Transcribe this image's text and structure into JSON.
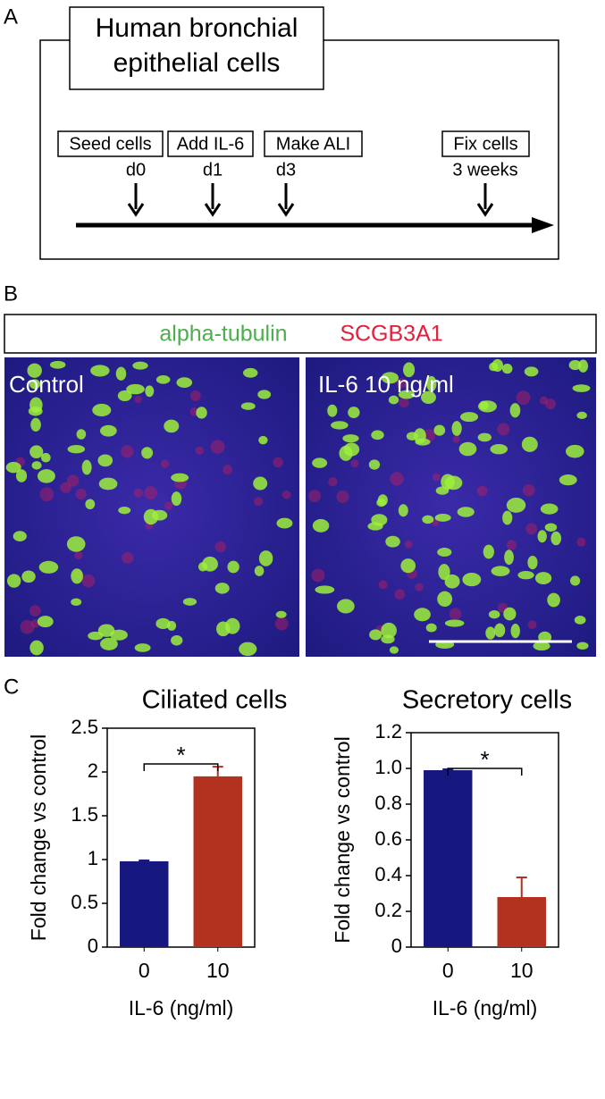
{
  "panel_a": {
    "label": "A",
    "title": [
      "Human bronchial",
      "epithelial cells"
    ],
    "steps": [
      {
        "label": "Seed cells",
        "time": "d0"
      },
      {
        "label": "Add IL-6",
        "time": "d1"
      },
      {
        "label": "Make ALI",
        "time": "d3"
      },
      {
        "label": "Fix cells",
        "time": "3 weeks"
      }
    ]
  },
  "panel_b": {
    "label": "B",
    "legend": [
      "alpha-tubulin",
      "SCGB3A1"
    ],
    "images": [
      "Control",
      "IL-6 10 ng/ml"
    ]
  },
  "panel_c": {
    "label": "C"
  },
  "chart_data": [
    {
      "type": "bar",
      "title": "Ciliated cells",
      "x_label": "IL-6 (ng/ml)",
      "y_label": "Fold change vs control",
      "categories": [
        "0",
        "10"
      ],
      "values": [
        0.98,
        1.95
      ],
      "errors": [
        0.01,
        0.11
      ],
      "colors": [
        "#16177f",
        "#b3311f"
      ],
      "ylim": [
        0,
        2.5
      ],
      "yticks": [
        0,
        0.5,
        1,
        1.5,
        2,
        2.5
      ],
      "significance": "*"
    },
    {
      "type": "bar",
      "title": "Secretory cells",
      "x_label": "IL-6 (ng/ml)",
      "y_label": "Fold change vs control",
      "categories": [
        "0",
        "10"
      ],
      "values": [
        0.99,
        0.28
      ],
      "errors": [
        0.005,
        0.11
      ],
      "colors": [
        "#16177f",
        "#b3311f"
      ],
      "ylim": [
        0,
        1.2
      ],
      "yticks": [
        0,
        0.2,
        0.4,
        0.6,
        0.8,
        {
          "value": 1,
          "label": "1.0"
        },
        1.2
      ],
      "significance": "*"
    }
  ]
}
